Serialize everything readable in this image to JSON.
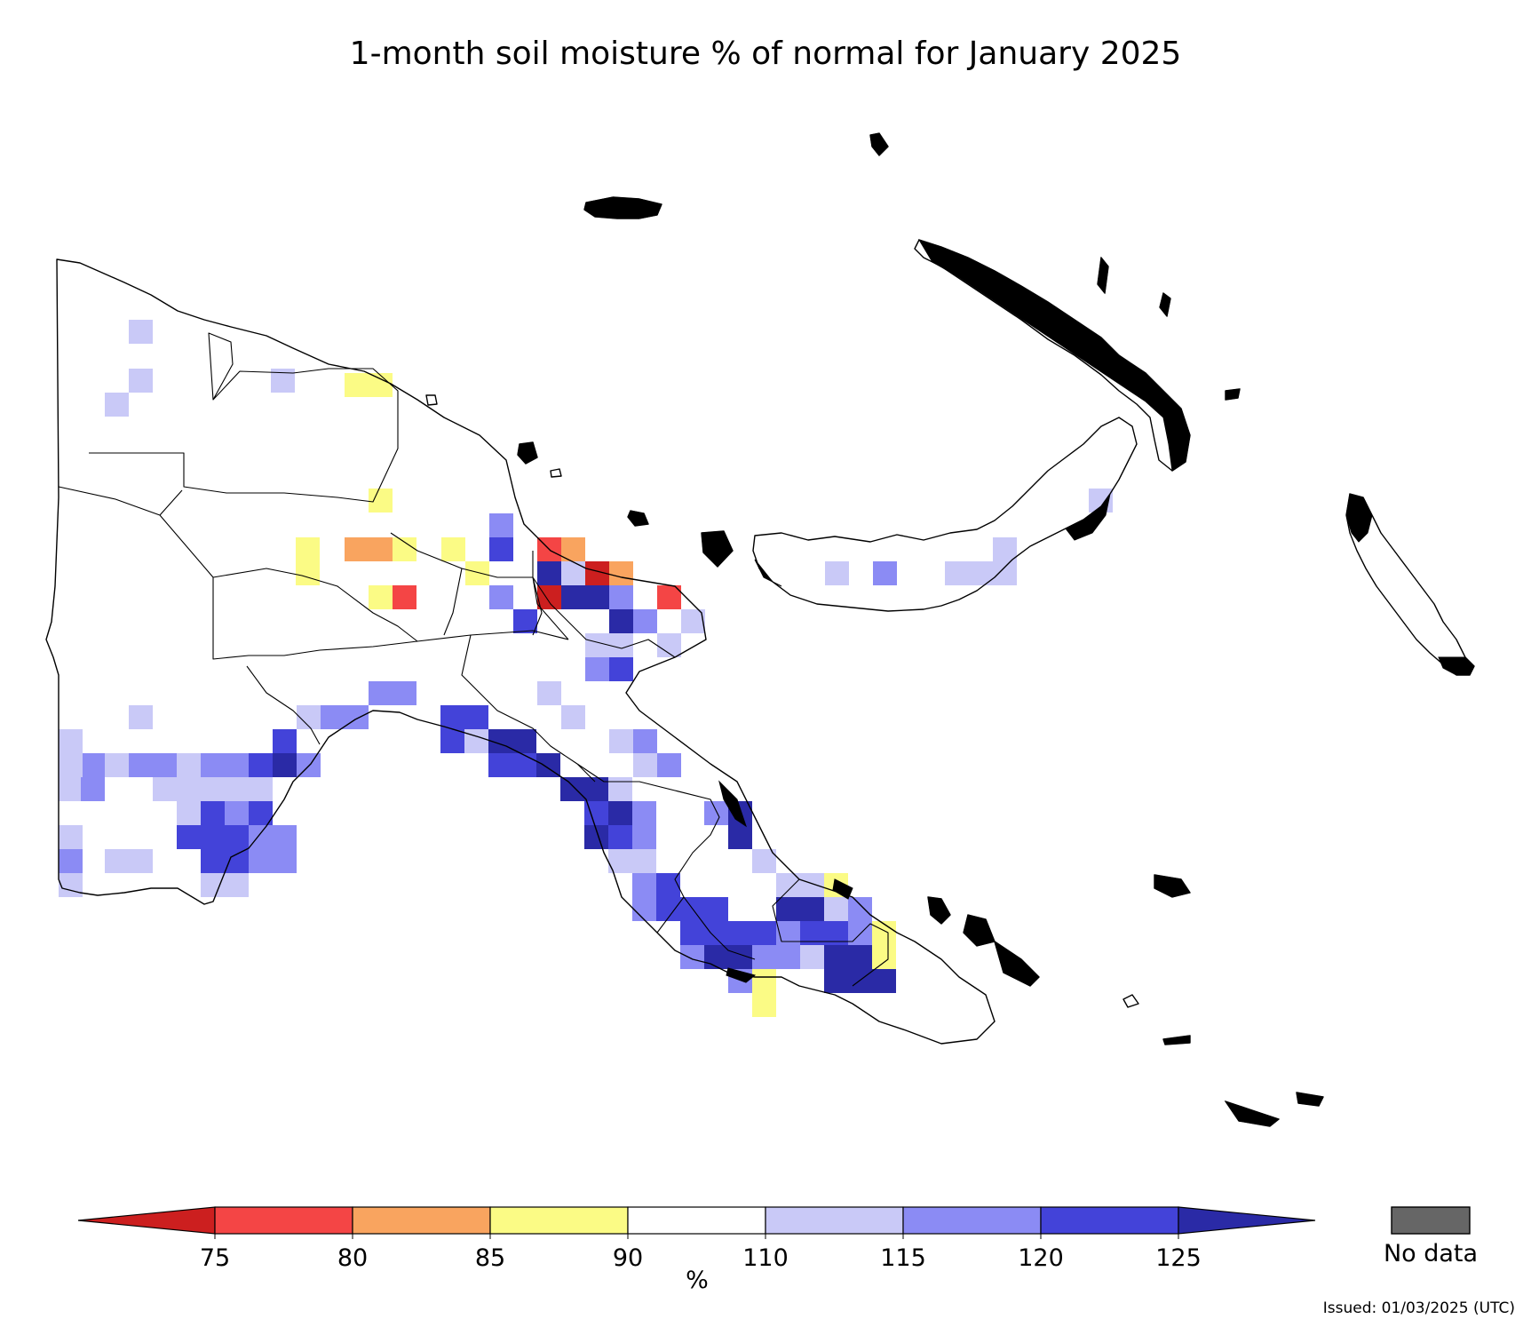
{
  "title": "1-month soil moisture % of normal for January 2025",
  "issued": "Issued: 01/03/2025 (UTC)",
  "colorbar": {
    "unit_label": "%",
    "ticks": [
      "75",
      "80",
      "85",
      "90",
      "110",
      "115",
      "120",
      "125"
    ],
    "bins": [
      {
        "range": "<75",
        "color": "#cc1f1f"
      },
      {
        "range": "75-80",
        "color": "#f44545"
      },
      {
        "range": "80-85",
        "color": "#f9a45f"
      },
      {
        "range": "85-90",
        "color": "#fbfb85"
      },
      {
        "range": "90-110",
        "color": "#ffffff"
      },
      {
        "range": "110-115",
        "color": "#c9c9f7"
      },
      {
        "range": "115-120",
        "color": "#8b8bf4"
      },
      {
        "range": "120-125",
        "color": "#4343d9"
      },
      {
        "range": ">125",
        "color": "#2a2aa6"
      }
    ]
  },
  "no_data": {
    "label": "No data",
    "color": "#666666"
  }
}
